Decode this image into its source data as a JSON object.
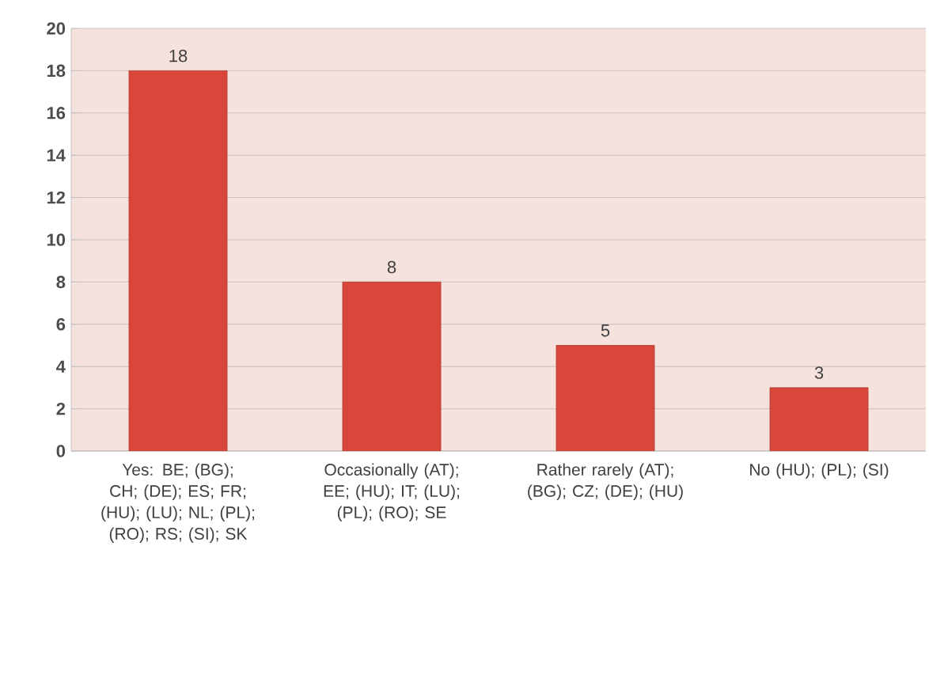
{
  "chart_data": {
    "type": "bar",
    "categories": [
      "Yes: BE; (BG); CH; (DE); ES; FR; (HU); (LU); NL; (PL); (RO); RS; (SI); SK",
      "Occasionally (AT); EE; (HU); IT; (LU); (PL); (RO); SE",
      "Rather rarely (AT); (BG); CZ; (DE); (HU)",
      "No (HU); (PL); (SI)"
    ],
    "values": [
      18,
      8,
      5,
      3
    ],
    "color": "#d9473b",
    "ylim": [
      0,
      20
    ],
    "yticks": [
      0,
      2,
      4,
      6,
      8,
      10,
      12,
      14,
      16,
      18,
      20
    ],
    "grid": "y",
    "data_labels": true
  }
}
